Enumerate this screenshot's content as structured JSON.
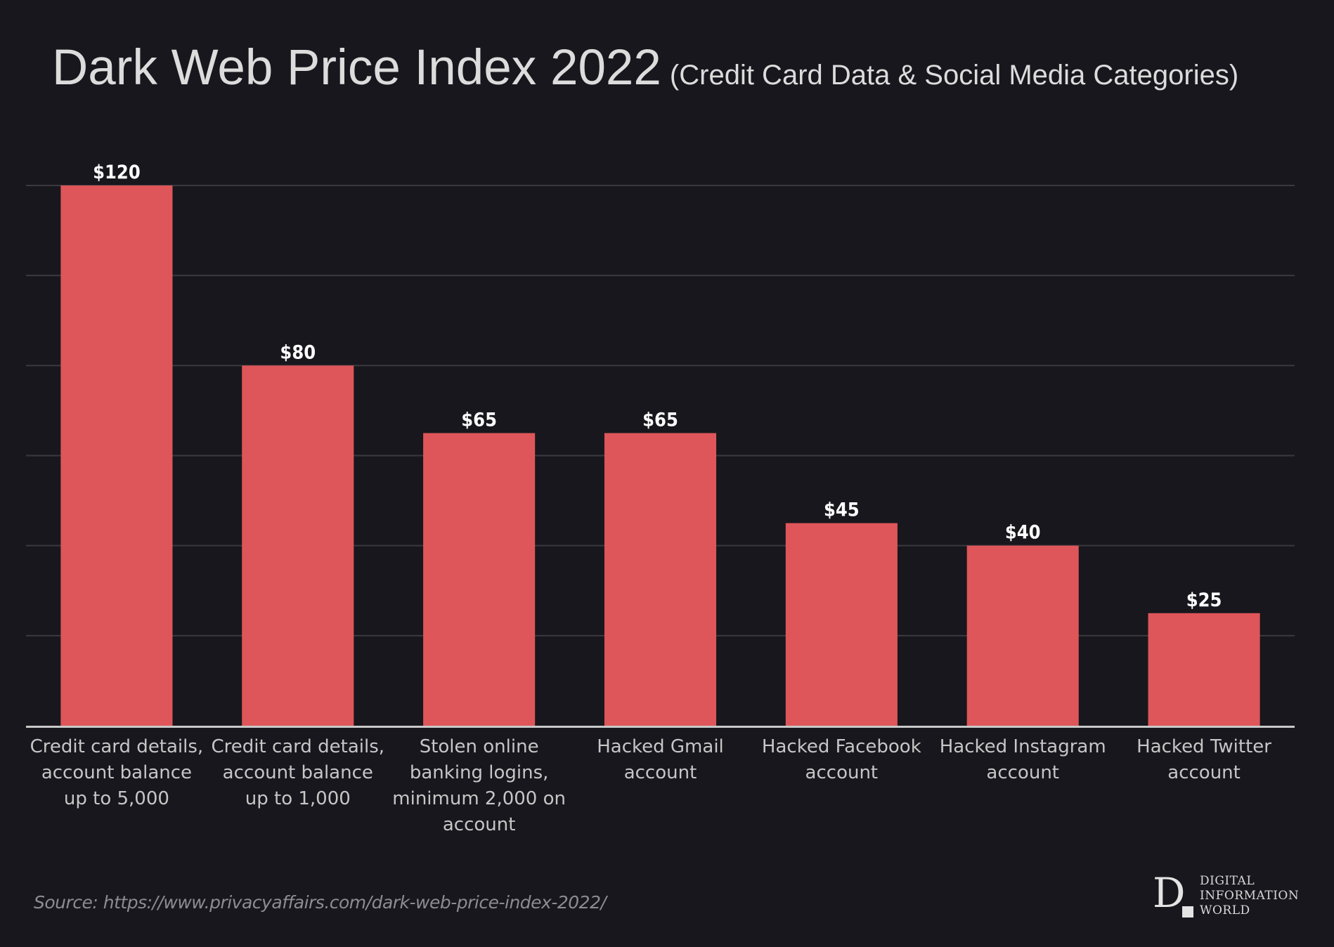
{
  "header": {
    "title": "Dark Web Price Index 2022",
    "subtitle": "(Credit Card Data & Social Media Categories)"
  },
  "footer": {
    "source": "Source: https://www.privacyaffairs.com/dark-web-price-index-2022/",
    "logo_mark": "D",
    "logo_lines": [
      "DIGITAL",
      "INFORMATION",
      "WORLD"
    ]
  },
  "colors": {
    "background": "#18171d",
    "bar": "#de5659",
    "gridline": "#3a393f",
    "axis": "#c8c8c8",
    "value_label": "#ffffff",
    "category_label": "#c6c6c6"
  },
  "chart_data": {
    "type": "bar",
    "title": "Dark Web Price Index 2022",
    "subtitle": "(Credit Card Data & Social Media Categories)",
    "xlabel": "",
    "ylabel": "",
    "ylim": [
      0,
      120
    ],
    "y_gridlines": [
      20,
      40,
      60,
      80,
      100,
      120
    ],
    "grid": true,
    "legend": "none",
    "value_prefix": "$",
    "categories": [
      [
        "Credit card details,",
        "account balance",
        "up to 5,000"
      ],
      [
        "Credit card details,",
        "account balance",
        "up to 1,000"
      ],
      [
        "Stolen online",
        "banking logins,",
        "minimum 2,000 on",
        "account"
      ],
      [
        "Hacked Gmail",
        "account"
      ],
      [
        "Hacked Facebook",
        "account"
      ],
      [
        "Hacked Instagram",
        "account"
      ],
      [
        "Hacked Twitter",
        "account"
      ]
    ],
    "values": [
      120,
      80,
      65,
      65,
      45,
      40,
      25
    ],
    "data_labels": [
      "$120",
      "$80",
      "$65",
      "$65",
      "$45",
      "$40",
      "$25"
    ]
  }
}
